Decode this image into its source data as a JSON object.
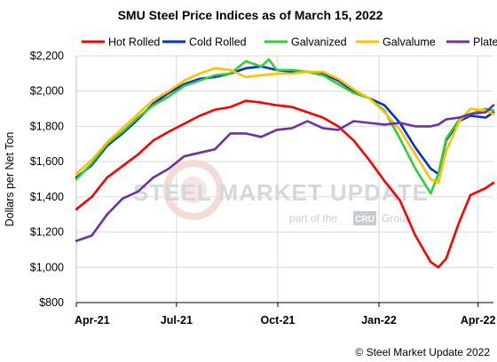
{
  "chart_data": {
    "type": "line",
    "title": "SMU Steel Price Indices as of March 15, 2022",
    "xlabel": "",
    "ylabel": "Dollars per Net Ton",
    "ylim": [
      800,
      2200
    ],
    "yticks": [
      800,
      1000,
      1200,
      1400,
      1600,
      1800,
      2000,
      2200
    ],
    "ytick_labels": [
      "$800",
      "$1,000",
      "$1,200",
      "$1,400",
      "$1,600",
      "$1,800",
      "$2,000",
      "$2,200"
    ],
    "xlim": [
      "2021-04-01",
      "2022-04-15"
    ],
    "xticks": [
      "2021-04-01",
      "2021-07-01",
      "2021-10-01",
      "2022-01-01",
      "2022-04-01"
    ],
    "xtick_labels": [
      "Apr-21",
      "Jul-21",
      "Oct-21",
      "Jan-22",
      "Apr-22"
    ],
    "grid": true,
    "legend": "top",
    "series": [
      {
        "name": "Hot Rolled",
        "color": "#ff0000",
        "x": [
          "2021-04-01",
          "2021-04-15",
          "2021-04-29",
          "2021-05-13",
          "2021-05-27",
          "2021-06-10",
          "2021-06-24",
          "2021-07-08",
          "2021-07-22",
          "2021-08-05",
          "2021-08-19",
          "2021-09-02",
          "2021-09-16",
          "2021-09-30",
          "2021-10-14",
          "2021-10-28",
          "2021-11-11",
          "2021-11-25",
          "2021-12-09",
          "2021-12-23",
          "2022-01-06",
          "2022-01-20",
          "2022-02-03",
          "2022-02-17",
          "2022-02-24",
          "2022-03-03",
          "2022-03-15",
          "2022-03-25",
          "2022-04-08",
          "2022-04-15"
        ],
        "y": [
          1330,
          1400,
          1510,
          1575,
          1640,
          1720,
          1770,
          1815,
          1860,
          1895,
          1910,
          1945,
          1935,
          1920,
          1910,
          1880,
          1850,
          1800,
          1720,
          1610,
          1490,
          1380,
          1180,
          1030,
          1000,
          1050,
          1260,
          1410,
          1450,
          1480
        ]
      },
      {
        "name": "Cold Rolled",
        "color": "#0033cc",
        "x": [
          "2021-04-01",
          "2021-04-15",
          "2021-04-29",
          "2021-05-13",
          "2021-05-27",
          "2021-06-10",
          "2021-06-24",
          "2021-07-08",
          "2021-07-22",
          "2021-08-05",
          "2021-08-19",
          "2021-09-02",
          "2021-09-16",
          "2021-09-30",
          "2021-10-14",
          "2021-10-28",
          "2021-11-11",
          "2021-11-25",
          "2021-12-09",
          "2021-12-23",
          "2022-01-06",
          "2022-01-20",
          "2022-02-03",
          "2022-02-17",
          "2022-02-24",
          "2022-03-03",
          "2022-03-15",
          "2022-03-25",
          "2022-04-08",
          "2022-04-15"
        ],
        "y": [
          1510,
          1580,
          1690,
          1760,
          1840,
          1930,
          1990,
          2040,
          2070,
          2080,
          2100,
          2130,
          2140,
          2120,
          2110,
          2110,
          2100,
          2060,
          2000,
          1960,
          1920,
          1820,
          1680,
          1560,
          1530,
          1720,
          1830,
          1860,
          1850,
          1880
        ]
      },
      {
        "name": "Galvanized",
        "color": "#33cc33",
        "x": [
          "2021-04-01",
          "2021-04-15",
          "2021-04-29",
          "2021-05-13",
          "2021-05-27",
          "2021-06-10",
          "2021-06-24",
          "2021-07-08",
          "2021-07-22",
          "2021-08-05",
          "2021-08-19",
          "2021-09-02",
          "2021-09-16",
          "2021-09-23",
          "2021-09-30",
          "2021-10-14",
          "2021-10-28",
          "2021-11-11",
          "2021-11-25",
          "2021-12-09",
          "2021-12-23",
          "2022-01-06",
          "2022-01-20",
          "2022-02-03",
          "2022-02-17",
          "2022-02-24",
          "2022-03-03",
          "2022-03-15",
          "2022-03-25",
          "2022-04-08",
          "2022-04-15"
        ],
        "y": [
          1500,
          1590,
          1700,
          1770,
          1850,
          1920,
          1970,
          2030,
          2060,
          2090,
          2100,
          2170,
          2140,
          2180,
          2120,
          2120,
          2110,
          2090,
          2040,
          1990,
          1960,
          1890,
          1730,
          1560,
          1420,
          1530,
          1730,
          1840,
          1870,
          1900,
          1890
        ]
      },
      {
        "name": "Galvalume",
        "color": "#ffc000",
        "x": [
          "2021-04-01",
          "2021-04-15",
          "2021-04-29",
          "2021-05-13",
          "2021-05-27",
          "2021-06-10",
          "2021-06-24",
          "2021-07-08",
          "2021-07-22",
          "2021-08-05",
          "2021-08-19",
          "2021-09-02",
          "2021-09-16",
          "2021-09-30",
          "2021-10-14",
          "2021-10-28",
          "2021-11-11",
          "2021-11-25",
          "2021-12-09",
          "2021-12-23",
          "2022-01-06",
          "2022-01-20",
          "2022-02-03",
          "2022-02-17",
          "2022-02-24",
          "2022-03-03",
          "2022-03-15",
          "2022-03-25",
          "2022-04-08",
          "2022-04-15"
        ],
        "y": [
          1530,
          1610,
          1710,
          1790,
          1870,
          1950,
          2000,
          2060,
          2100,
          2130,
          2120,
          2080,
          2090,
          2100,
          2100,
          2110,
          2110,
          2070,
          2010,
          1960,
          1880,
          1780,
          1640,
          1500,
          1480,
          1660,
          1830,
          1900,
          1890,
          1870
        ]
      },
      {
        "name": "Plate",
        "color": "#7030a0",
        "x": [
          "2021-04-01",
          "2021-04-15",
          "2021-04-29",
          "2021-05-13",
          "2021-05-27",
          "2021-06-10",
          "2021-06-24",
          "2021-07-08",
          "2021-07-22",
          "2021-08-05",
          "2021-08-19",
          "2021-09-02",
          "2021-09-16",
          "2021-09-30",
          "2021-10-14",
          "2021-10-28",
          "2021-11-11",
          "2021-11-25",
          "2021-12-09",
          "2021-12-23",
          "2022-01-06",
          "2022-01-20",
          "2022-02-03",
          "2022-02-17",
          "2022-02-24",
          "2022-03-03",
          "2022-03-15",
          "2022-03-25",
          "2022-04-08",
          "2022-04-15"
        ],
        "y": [
          1150,
          1180,
          1300,
          1390,
          1430,
          1510,
          1560,
          1630,
          1650,
          1670,
          1760,
          1760,
          1740,
          1780,
          1790,
          1830,
          1790,
          1780,
          1830,
          1820,
          1810,
          1820,
          1800,
          1800,
          1810,
          1840,
          1850,
          1870,
          1880,
          1920
        ]
      }
    ]
  },
  "watermark": {
    "brand": "STEEL MARKET UPDATE",
    "tagline_pre": "part of the",
    "tagline_box": "CRU",
    "tagline_post": "Group"
  },
  "copyright": "© Steel Market Update 2022"
}
